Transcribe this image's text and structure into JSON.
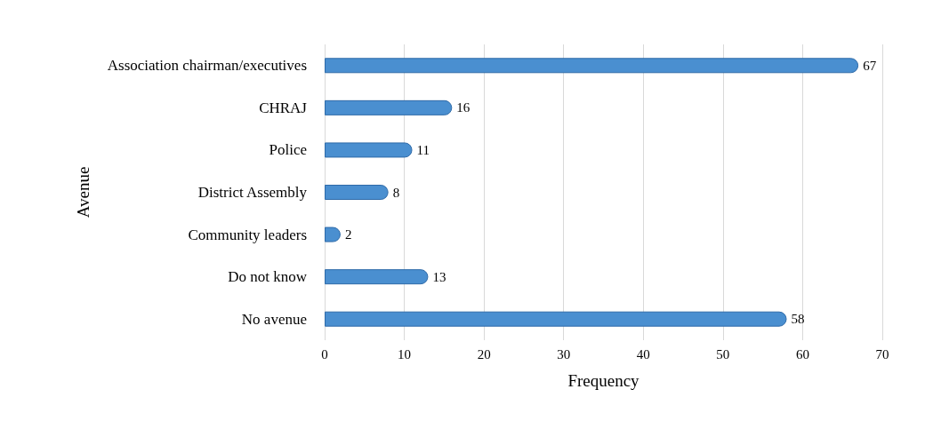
{
  "chart_data": {
    "type": "bar",
    "orientation": "horizontal",
    "xlabel": "Frequency",
    "ylabel": "Avenue",
    "categories": [
      "Association chairman/executives",
      "CHRAJ",
      "Police",
      "District Assembly",
      "Community leaders",
      "Do not know",
      "No avenue"
    ],
    "values": [
      67,
      16,
      11,
      8,
      2,
      13,
      58
    ],
    "color": "#4a8fd0",
    "xlim": [
      0,
      70
    ],
    "xticks": [
      0,
      10,
      20,
      30,
      40,
      50,
      60,
      70
    ],
    "grid": "x",
    "data_labels": true
  }
}
